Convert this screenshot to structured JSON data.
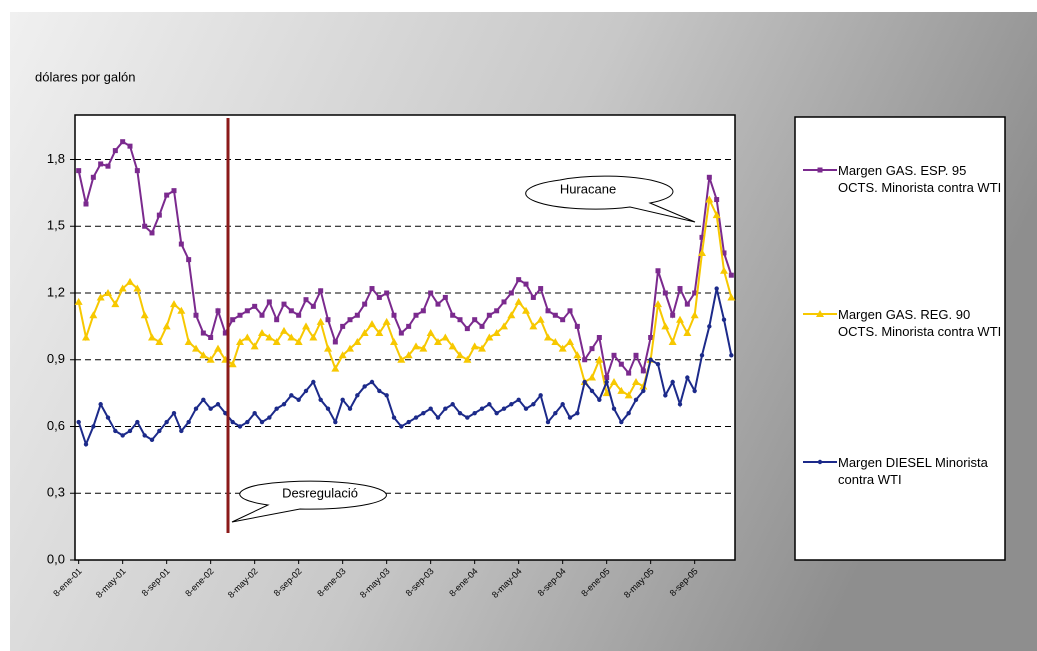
{
  "chart_data": {
    "type": "line",
    "y_axis_label": "dólares por galón",
    "categories": [
      "8-ene-01",
      null,
      null,
      null,
      null,
      null,
      "8-may-01",
      null,
      null,
      null,
      null,
      null,
      "8-sep-01",
      null,
      null,
      null,
      null,
      null,
      "8-ene-02",
      null,
      null,
      null,
      null,
      null,
      "8-may-02",
      null,
      null,
      null,
      null,
      null,
      "8-sep-02",
      null,
      null,
      null,
      null,
      null,
      "8-ene-03",
      null,
      null,
      null,
      null,
      null,
      "8-may-03",
      null,
      null,
      null,
      null,
      null,
      "8-sep-03",
      null,
      null,
      null,
      null,
      null,
      "8-ene-04",
      null,
      null,
      null,
      null,
      null,
      "8-may-04",
      null,
      null,
      null,
      null,
      null,
      "8-sep-04",
      null,
      null,
      null,
      null,
      null,
      "8-ene-05",
      null,
      null,
      null,
      null,
      null,
      "8-may-05",
      null,
      null,
      null,
      null,
      null,
      "8-sep-05",
      null,
      null,
      null,
      null,
      null
    ],
    "series": [
      {
        "name": "Margen GAS. ESP. 95 OCTS. Minorista contra WTI",
        "color": "#7b2a8e",
        "marker": "square",
        "values": [
          1.75,
          1.6,
          1.72,
          1.78,
          1.77,
          1.84,
          1.88,
          1.86,
          1.75,
          1.5,
          1.47,
          1.55,
          1.64,
          1.66,
          1.42,
          1.35,
          1.1,
          1.02,
          1.0,
          1.12,
          1.02,
          1.08,
          1.1,
          1.12,
          1.14,
          1.1,
          1.16,
          1.08,
          1.15,
          1.12,
          1.1,
          1.17,
          1.14,
          1.21,
          1.08,
          0.98,
          1.05,
          1.08,
          1.1,
          1.15,
          1.22,
          1.18,
          1.2,
          1.1,
          1.02,
          1.05,
          1.1,
          1.12,
          1.2,
          1.15,
          1.18,
          1.1,
          1.08,
          1.04,
          1.08,
          1.05,
          1.1,
          1.12,
          1.16,
          1.2,
          1.26,
          1.24,
          1.18,
          1.22,
          1.12,
          1.1,
          1.08,
          1.12,
          1.05,
          0.9,
          0.95,
          1.0,
          0.82,
          0.92,
          0.88,
          0.84,
          0.92,
          0.85,
          1.0,
          1.3,
          1.2,
          1.1,
          1.22,
          1.15,
          1.2,
          1.45,
          1.72,
          1.62,
          1.38,
          1.28
        ]
      },
      {
        "name": "Margen GAS. REG. 90 OCTS. Minorista contra WTI",
        "color": "#f7c800",
        "marker": "triangle",
        "values": [
          1.16,
          1.0,
          1.1,
          1.18,
          1.2,
          1.15,
          1.22,
          1.25,
          1.22,
          1.1,
          1.0,
          0.98,
          1.05,
          1.15,
          1.12,
          0.98,
          0.95,
          0.92,
          0.9,
          0.95,
          0.9,
          0.88,
          0.98,
          1.0,
          0.96,
          1.02,
          1.0,
          0.98,
          1.03,
          1.0,
          0.98,
          1.05,
          1.0,
          1.07,
          0.95,
          0.86,
          0.92,
          0.95,
          0.98,
          1.02,
          1.06,
          1.02,
          1.07,
          0.98,
          0.9,
          0.92,
          0.96,
          0.95,
          1.02,
          0.98,
          1.0,
          0.96,
          0.92,
          0.9,
          0.96,
          0.95,
          1.0,
          1.02,
          1.05,
          1.1,
          1.16,
          1.12,
          1.05,
          1.08,
          1.0,
          0.98,
          0.95,
          0.98,
          0.92,
          0.8,
          0.82,
          0.9,
          0.75,
          0.8,
          0.76,
          0.74,
          0.8,
          0.78,
          0.9,
          1.15,
          1.05,
          0.98,
          1.08,
          1.02,
          1.1,
          1.38,
          1.62,
          1.55,
          1.3,
          1.18
        ]
      },
      {
        "name": "Margen DIESEL Minorista contra WTI",
        "color": "#1c2a8a",
        "marker": "dot",
        "values": [
          0.62,
          0.52,
          0.6,
          0.7,
          0.64,
          0.58,
          0.56,
          0.58,
          0.62,
          0.56,
          0.54,
          0.58,
          0.62,
          0.66,
          0.58,
          0.62,
          0.68,
          0.72,
          0.68,
          0.7,
          0.66,
          0.62,
          0.6,
          0.62,
          0.66,
          0.62,
          0.64,
          0.68,
          0.7,
          0.74,
          0.72,
          0.76,
          0.8,
          0.72,
          0.68,
          0.62,
          0.72,
          0.68,
          0.74,
          0.78,
          0.8,
          0.76,
          0.74,
          0.64,
          0.6,
          0.62,
          0.64,
          0.66,
          0.68,
          0.64,
          0.68,
          0.7,
          0.66,
          0.64,
          0.66,
          0.68,
          0.7,
          0.66,
          0.68,
          0.7,
          0.72,
          0.68,
          0.7,
          0.74,
          0.62,
          0.66,
          0.7,
          0.64,
          0.66,
          0.8,
          0.76,
          0.72,
          0.8,
          0.68,
          0.62,
          0.66,
          0.72,
          0.76,
          0.9,
          0.88,
          0.74,
          0.8,
          0.7,
          0.82,
          0.76,
          0.92,
          1.05,
          1.22,
          1.08,
          0.92
        ]
      }
    ],
    "ylim": [
      0,
      2.0
    ],
    "yticks": [
      {
        "value": 0,
        "label": "0,0"
      },
      {
        "value": 0.3,
        "label": "0,3"
      },
      {
        "value": 0.6,
        "label": "0,6"
      },
      {
        "value": 0.9,
        "label": "0,9"
      },
      {
        "value": 1.2,
        "label": "1,2"
      },
      {
        "value": 1.5,
        "label": "1,5"
      },
      {
        "value": 1.8,
        "label": "1,8"
      }
    ],
    "grid": true,
    "annotations": [
      "Huracane",
      "Desregulació"
    ]
  }
}
